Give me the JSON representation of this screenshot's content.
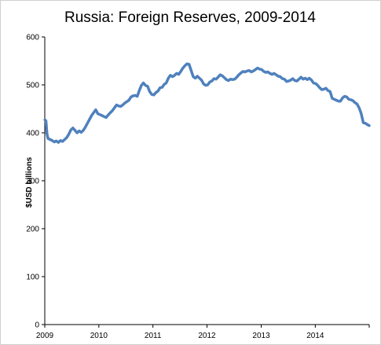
{
  "chart_data": {
    "type": "line",
    "title": "Russia: Foreign Reserves, 2009-2014",
    "xlabel": "",
    "ylabel": "$USD billions",
    "ylim": [
      0,
      600
    ],
    "xlim": [
      "2009-01-01",
      "2014-12-31"
    ],
    "y_ticks": [
      "0",
      "100",
      "200",
      "300",
      "400",
      "500",
      "600"
    ],
    "x_ticks": [
      "2009",
      "2010",
      "2011",
      "2012",
      "2013",
      "2014"
    ],
    "grid": false,
    "legend": "none",
    "series": [
      {
        "color": "#4f81bd",
        "points": [
          [
            "2009-01-02",
            427
          ],
          [
            "2009-01-09",
            425
          ],
          [
            "2009-01-16",
            398
          ],
          [
            "2009-01-23",
            388
          ],
          [
            "2009-02-06",
            386
          ],
          [
            "2009-02-20",
            384
          ],
          [
            "2009-03-06",
            381
          ],
          [
            "2009-03-20",
            383
          ],
          [
            "2009-04-03",
            380
          ],
          [
            "2009-04-17",
            384
          ],
          [
            "2009-05-01",
            382
          ],
          [
            "2009-05-15",
            386
          ],
          [
            "2009-05-29",
            390
          ],
          [
            "2009-06-12",
            397
          ],
          [
            "2009-06-26",
            406
          ],
          [
            "2009-07-10",
            410
          ],
          [
            "2009-07-24",
            405
          ],
          [
            "2009-08-07",
            400
          ],
          [
            "2009-08-21",
            404
          ],
          [
            "2009-09-04",
            401
          ],
          [
            "2009-09-18",
            405
          ],
          [
            "2009-10-02",
            412
          ],
          [
            "2009-10-16",
            420
          ],
          [
            "2009-10-30",
            428
          ],
          [
            "2009-11-13",
            436
          ],
          [
            "2009-11-27",
            442
          ],
          [
            "2009-12-11",
            448
          ],
          [
            "2009-12-25",
            440
          ],
          [
            "2010-01-08",
            438
          ],
          [
            "2010-01-22",
            436
          ],
          [
            "2010-02-05",
            434
          ],
          [
            "2010-02-19",
            432
          ],
          [
            "2010-03-05",
            437
          ],
          [
            "2010-03-19",
            442
          ],
          [
            "2010-04-02",
            446
          ],
          [
            "2010-04-16",
            452
          ],
          [
            "2010-04-30",
            458
          ],
          [
            "2010-05-14",
            456
          ],
          [
            "2010-05-28",
            455
          ],
          [
            "2010-06-11",
            458
          ],
          [
            "2010-06-25",
            462
          ],
          [
            "2010-07-09",
            465
          ],
          [
            "2010-07-23",
            468
          ],
          [
            "2010-08-06",
            475
          ],
          [
            "2010-08-20",
            477
          ],
          [
            "2010-09-03",
            478
          ],
          [
            "2010-09-17",
            476
          ],
          [
            "2010-10-01",
            488
          ],
          [
            "2010-10-15",
            499
          ],
          [
            "2010-10-29",
            504
          ],
          [
            "2010-11-12",
            499
          ],
          [
            "2010-11-26",
            497
          ],
          [
            "2010-12-10",
            486
          ],
          [
            "2010-12-24",
            480
          ],
          [
            "2011-01-07",
            479
          ],
          [
            "2011-01-21",
            484
          ],
          [
            "2011-02-04",
            487
          ],
          [
            "2011-02-18",
            494
          ],
          [
            "2011-03-04",
            495
          ],
          [
            "2011-03-18",
            501
          ],
          [
            "2011-04-01",
            504
          ],
          [
            "2011-04-15",
            514
          ],
          [
            "2011-04-29",
            520
          ],
          [
            "2011-05-13",
            517
          ],
          [
            "2011-05-27",
            520
          ],
          [
            "2011-06-10",
            524
          ],
          [
            "2011-06-24",
            522
          ],
          [
            "2011-07-08",
            528
          ],
          [
            "2011-07-22",
            535
          ],
          [
            "2011-08-05",
            540
          ],
          [
            "2011-08-19",
            544
          ],
          [
            "2011-09-02",
            543
          ],
          [
            "2011-09-16",
            530
          ],
          [
            "2011-09-30",
            517
          ],
          [
            "2011-10-14",
            514
          ],
          [
            "2011-10-28",
            518
          ],
          [
            "2011-11-11",
            514
          ],
          [
            "2011-11-25",
            510
          ],
          [
            "2011-12-09",
            502
          ],
          [
            "2011-12-23",
            499
          ],
          [
            "2012-01-06",
            500
          ],
          [
            "2012-01-20",
            506
          ],
          [
            "2012-02-03",
            508
          ],
          [
            "2012-02-17",
            513
          ],
          [
            "2012-03-02",
            512
          ],
          [
            "2012-03-16",
            516
          ],
          [
            "2012-03-30",
            521
          ],
          [
            "2012-04-13",
            519
          ],
          [
            "2012-04-27",
            515
          ],
          [
            "2012-05-11",
            511
          ],
          [
            "2012-05-25",
            509
          ],
          [
            "2012-06-08",
            512
          ],
          [
            "2012-06-22",
            511
          ],
          [
            "2012-07-06",
            512
          ],
          [
            "2012-07-20",
            516
          ],
          [
            "2012-08-03",
            521
          ],
          [
            "2012-08-17",
            525
          ],
          [
            "2012-08-31",
            528
          ],
          [
            "2012-09-14",
            527
          ],
          [
            "2012-09-28",
            529
          ],
          [
            "2012-10-12",
            530
          ],
          [
            "2012-10-26",
            527
          ],
          [
            "2012-11-09",
            529
          ],
          [
            "2012-11-23",
            532
          ],
          [
            "2012-12-07",
            535
          ],
          [
            "2012-12-21",
            533
          ],
          [
            "2013-01-04",
            532
          ],
          [
            "2013-01-18",
            528
          ],
          [
            "2013-02-01",
            526
          ],
          [
            "2013-02-15",
            527
          ],
          [
            "2013-03-01",
            524
          ],
          [
            "2013-03-15",
            522
          ],
          [
            "2013-03-29",
            524
          ],
          [
            "2013-04-12",
            521
          ],
          [
            "2013-04-26",
            518
          ],
          [
            "2013-05-10",
            517
          ],
          [
            "2013-05-24",
            513
          ],
          [
            "2013-06-07",
            512
          ],
          [
            "2013-06-21",
            507
          ],
          [
            "2013-07-05",
            508
          ],
          [
            "2013-07-19",
            510
          ],
          [
            "2013-08-02",
            513
          ],
          [
            "2013-08-16",
            509
          ],
          [
            "2013-08-30",
            508
          ],
          [
            "2013-09-13",
            512
          ],
          [
            "2013-09-27",
            516
          ],
          [
            "2013-10-11",
            512
          ],
          [
            "2013-10-25",
            514
          ],
          [
            "2013-11-08",
            511
          ],
          [
            "2013-11-22",
            514
          ],
          [
            "2013-12-06",
            510
          ],
          [
            "2013-12-20",
            504
          ],
          [
            "2014-01-03",
            503
          ],
          [
            "2014-01-17",
            499
          ],
          [
            "2014-01-31",
            494
          ],
          [
            "2014-02-14",
            490
          ],
          [
            "2014-02-28",
            491
          ],
          [
            "2014-03-14",
            493
          ],
          [
            "2014-03-28",
            488
          ],
          [
            "2014-04-11",
            486
          ],
          [
            "2014-04-25",
            472
          ],
          [
            "2014-05-09",
            470
          ],
          [
            "2014-05-23",
            468
          ],
          [
            "2014-06-06",
            466
          ],
          [
            "2014-06-20",
            466
          ],
          [
            "2014-07-04",
            473
          ],
          [
            "2014-07-18",
            476
          ],
          [
            "2014-08-01",
            475
          ],
          [
            "2014-08-15",
            470
          ],
          [
            "2014-08-29",
            469
          ],
          [
            "2014-09-12",
            467
          ],
          [
            "2014-09-26",
            463
          ],
          [
            "2014-10-10",
            460
          ],
          [
            "2014-10-24",
            452
          ],
          [
            "2014-11-07",
            440
          ],
          [
            "2014-11-21",
            421
          ],
          [
            "2014-12-05",
            420
          ],
          [
            "2014-12-19",
            417
          ],
          [
            "2014-12-31",
            415
          ]
        ]
      }
    ]
  }
}
